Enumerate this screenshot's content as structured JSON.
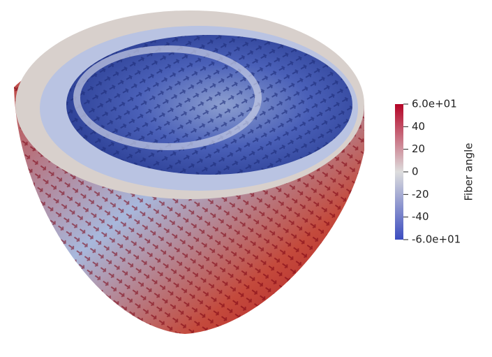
{
  "chart_data": {
    "type": "colorbar",
    "title": "Fiber angle",
    "ylim": [
      -60,
      60
    ],
    "yticks": [
      {
        "value": 60,
        "label": "6.0e+01"
      },
      40,
      20,
      0,
      -20,
      -40,
      {
        "value": -60,
        "label": "-6.0e+01"
      }
    ],
    "colors": [
      "#3b4cc0",
      "#dddddd",
      "#b40426"
    ]
  }
}
